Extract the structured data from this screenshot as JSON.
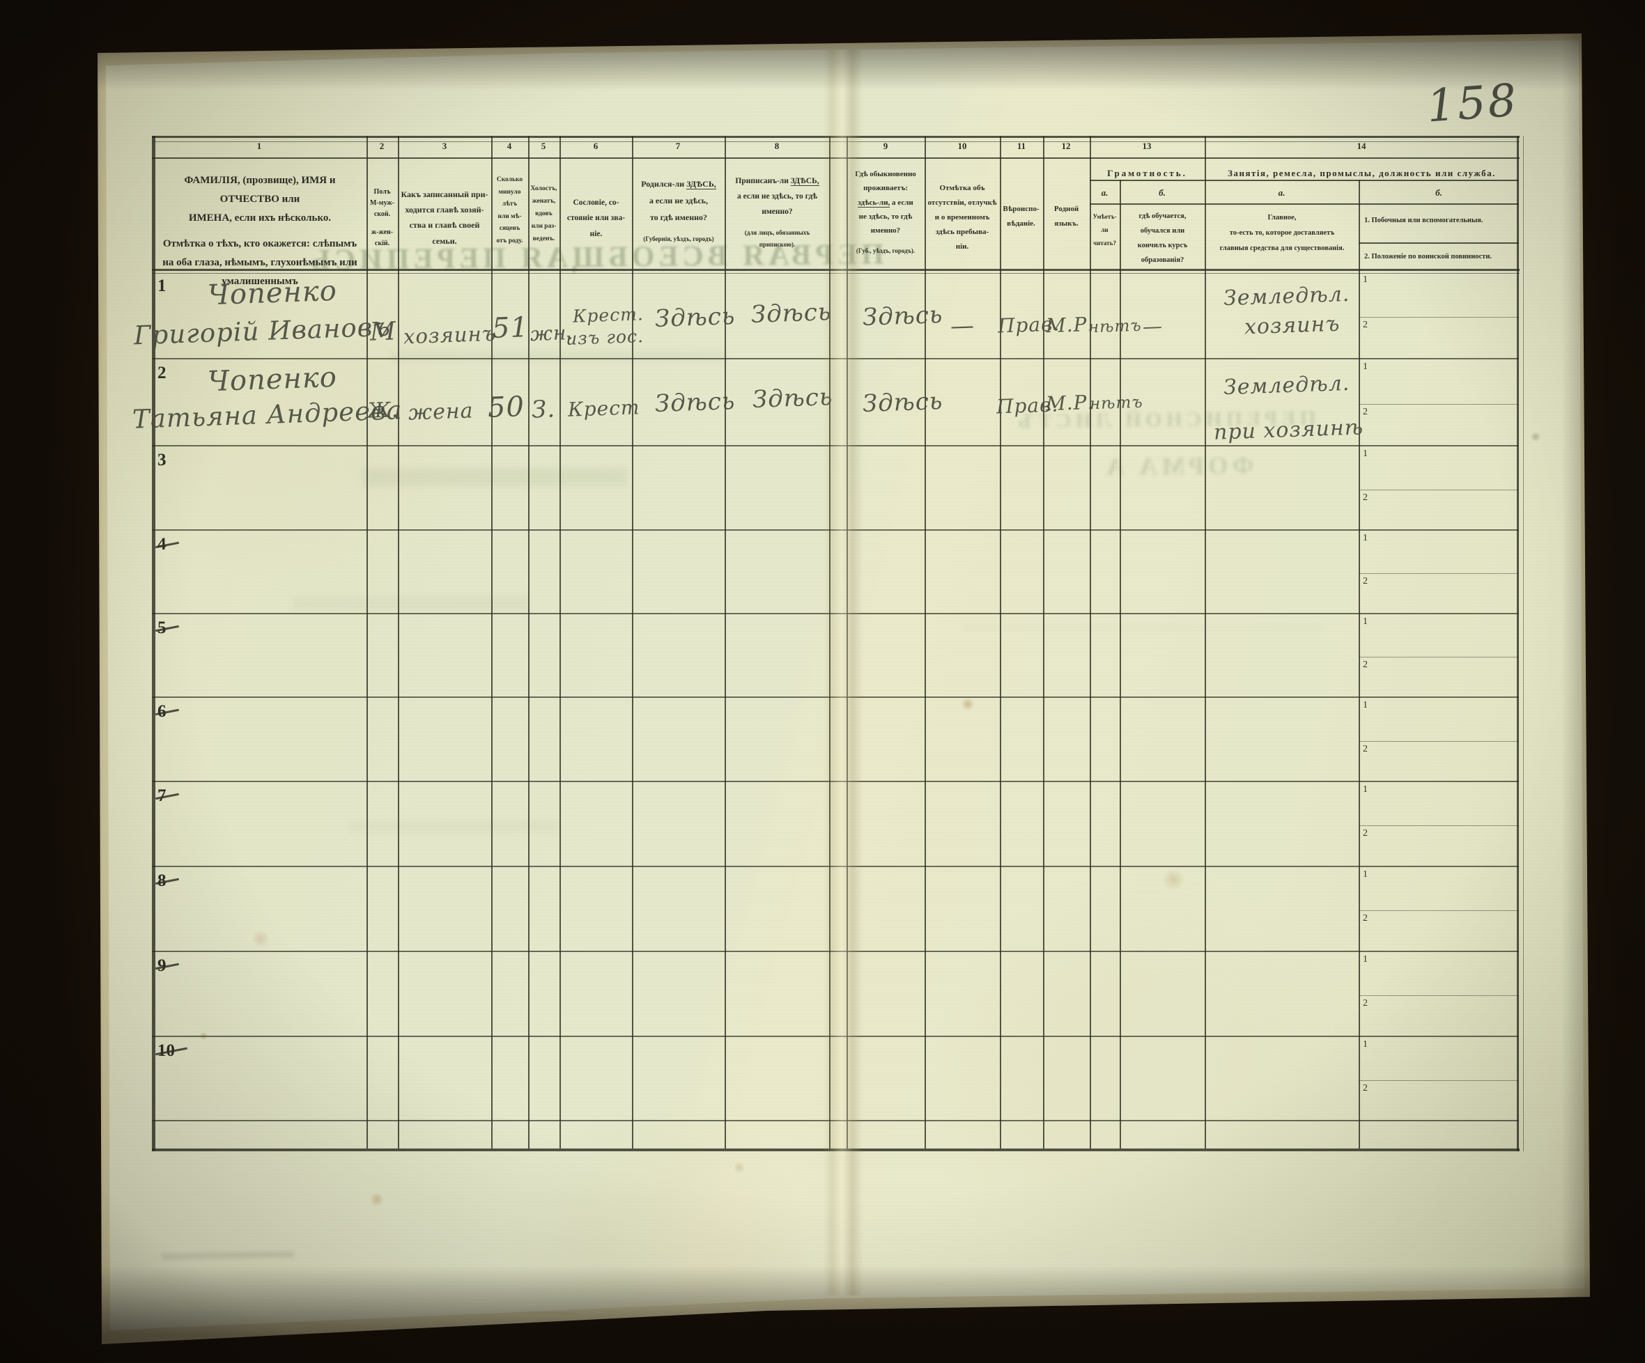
{
  "page": {
    "number": "158"
  },
  "ghost_bleedthrough": {
    "title": "ПЕРВАЯ ВСЕОБЩАЯ ПЕРЕПИСЬ",
    "list": "ПЕРЕПИСНОЙ ЛИСТЪ",
    "form": "ФОРМА А"
  },
  "colors": {
    "paper": "#e6e8ca",
    "table_ink": "#2e2f26",
    "handwriting_ink": "#4b4e40",
    "ghost_green": "#7d9070",
    "photo_background": "#140d07",
    "page_number_ink": "#4c5245"
  },
  "table": {
    "column_numbers": [
      "1",
      "2",
      "3",
      "4",
      "5",
      "6",
      "7",
      "8",
      "9",
      "10",
      "11",
      "12",
      "13",
      "14"
    ],
    "headers": {
      "col1": [
        "ФАМИЛІЯ, (прозвище), ИМЯ и ОТЧЕСТВО или",
        "ИМЕНА, если ихъ нѣсколько.",
        "Отмѣтка о тѣхъ, кто окажется: слѣпымъ",
        "на оба глаза, нѣмымъ, глухонѣмымъ или",
        "умалишеннымъ"
      ],
      "col2": [
        "Полъ",
        "М-муж-",
        "ской.",
        "ж-жен-",
        "скій."
      ],
      "col3": [
        "Какъ записанный при-",
        "ходится главѣ хозяй-",
        "ства и главѣ своей",
        "семьи."
      ],
      "col4": [
        "Сколько",
        "минуло",
        "лѣтъ",
        "или мѣ-",
        "сяцевъ",
        "отъ роду."
      ],
      "col5": [
        "Холостъ,",
        "женатъ,",
        "вдовъ",
        "или раз-",
        "веденъ."
      ],
      "col6": [
        "Сословіе, со-",
        "стояніе или зва-",
        "ніе."
      ],
      "col7": {
        "l1a": "Родился-ли",
        "l1b": "ЗДѢСЬ,",
        "l2": "а если не здѣсь,",
        "l3": "то гдѣ именно?",
        "l4": "(Губернія, уѣздъ, городъ)"
      },
      "col8": {
        "l1a": "Приписанъ-ли",
        "l1b": "ЗДѢСЬ,",
        "l2": "а если не здѣсь, то гдѣ",
        "l3": "именно?",
        "l4": "(для лицъ, обязанныхъ",
        "l5": "припискою)."
      },
      "col9": {
        "l1": "Гдѣ обыкновенно",
        "l2": "проживаетъ:",
        "l3a": "здѣсь-ли,",
        "l3b": "а если",
        "l4": "не здѣсь, то гдѣ",
        "l5": "именно?",
        "l6": "(Губ., уѣздъ, городъ)."
      },
      "col10": [
        "Отмѣтка объ",
        "отсутствіи, отлучкѣ",
        "и о временномъ",
        "здѣсь пребыва-",
        "ніи."
      ],
      "col11": [
        "Вѣроиспо-",
        "вѣданіе."
      ],
      "col12": [
        "Родной",
        "языкъ."
      ],
      "col13": {
        "title": "Грамотность.",
        "a_letter": "а.",
        "b_letter": "б.",
        "a": [
          "Умѣетъ-",
          "ли",
          "читать?"
        ],
        "b": [
          "гдѣ обучается,",
          "обучался или",
          "кончилъ курсъ",
          "образованія?"
        ]
      },
      "col14": {
        "title": "Занятія, ремесла, промыслы, должность или служба.",
        "a_letter": "а.",
        "b_letter": "б.",
        "a": [
          "Главное,",
          "то-есть то, которое доставляетъ",
          "главныя средства для существованія."
        ],
        "b1": "1. Побочныя или вспомогательныя.",
        "b2": "2. Положеніе по воинской повинности."
      }
    },
    "subcell_labels": [
      "1",
      "2"
    ],
    "rows": [
      {
        "num": "1",
        "struck": false,
        "name_line1": "Чопенко",
        "name_line2": "Григорій Ивановъ",
        "sex": "М",
        "relation": "хозяинъ",
        "age": "51",
        "marital": "жн.",
        "estate_line1": "Крест.",
        "estate_line2": "изъ гос.",
        "born_here": "Здѣсь",
        "registered_here": "Здѣсь",
        "resides_here": "Здѣсь",
        "absence_note": "—",
        "religion": "Прав.",
        "native_language": "М.Р.",
        "can_read": "нѣтъ",
        "education": "—",
        "occupation_line1": "Земледѣл.",
        "occupation_line2": "хозяинъ"
      },
      {
        "num": "2",
        "struck": false,
        "name_line1": "Чопенко",
        "name_line2": "Татьяна Андреева",
        "sex": "Ж.",
        "relation": "жена",
        "age": "50",
        "marital": "З.",
        "estate_line1": "Крест",
        "estate_line2": "",
        "born_here": "Здѣсь",
        "registered_here": "Здѣсь",
        "resides_here": "Здѣсь",
        "absence_note": "",
        "religion": "Прав.",
        "native_language": "М.Р.",
        "can_read": "нѣтъ",
        "education": "",
        "occupation_line1": "Земледѣл.",
        "occupation_line2": "при хозяинѣ"
      },
      {
        "num": "3",
        "struck": false
      },
      {
        "num": "4",
        "struck": true
      },
      {
        "num": "5",
        "struck": true
      },
      {
        "num": "6",
        "struck": true
      },
      {
        "num": "7",
        "struck": true
      },
      {
        "num": "8",
        "struck": true
      },
      {
        "num": "9",
        "struck": true
      },
      {
        "num": "10",
        "struck": true
      }
    ]
  }
}
